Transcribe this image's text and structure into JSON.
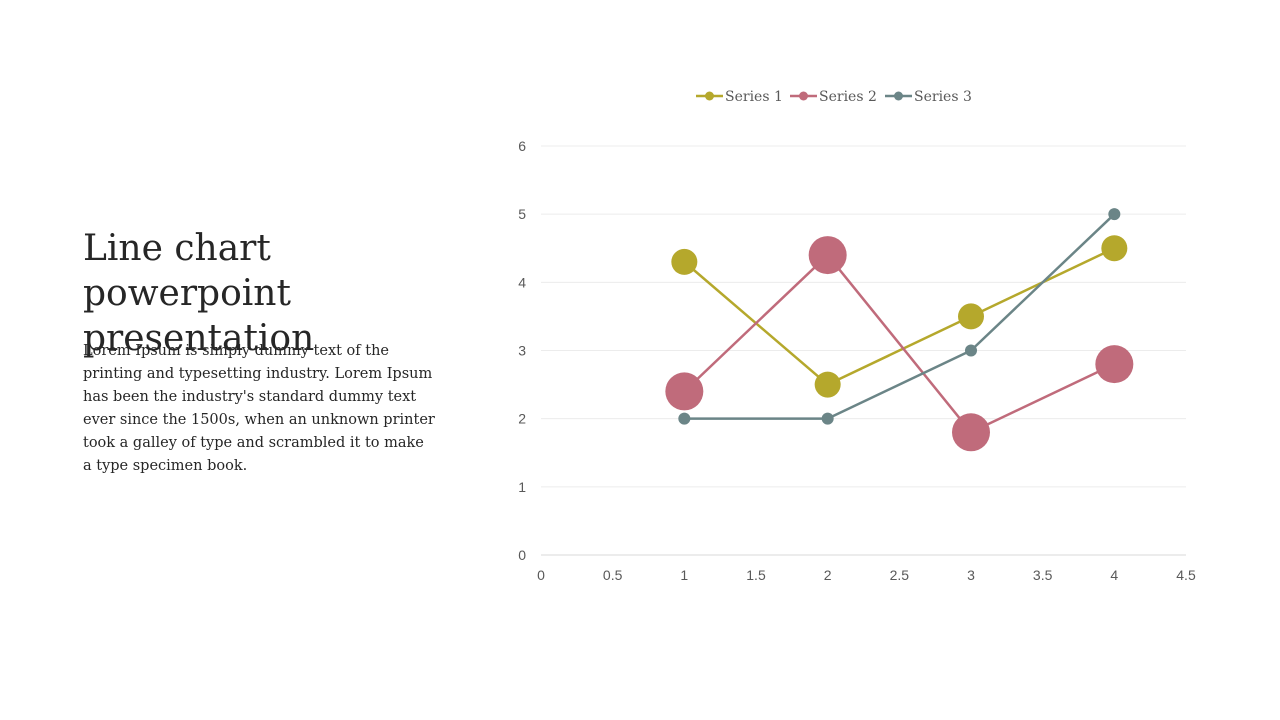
{
  "slide": {
    "title": "Line chart powerpoint presentation",
    "body": "Lorem Ipsum is simply dummy text of the printing and typesetting industry. Lorem Ipsum has been the industry's standard dummy text ever since the 1500s, when an unknown printer took a galley of type and scrambled it to make a type specimen book."
  },
  "chart_data": {
    "type": "line",
    "xlim": [
      0,
      4.5
    ],
    "ylim": [
      0,
      6
    ],
    "x_ticks": [
      "0",
      "0.5",
      "1",
      "1.5",
      "2",
      "2.5",
      "3",
      "3.5",
      "4",
      "4.5"
    ],
    "y_ticks": [
      "0",
      "1",
      "2",
      "3",
      "4",
      "5",
      "6"
    ],
    "grid": "horizontal",
    "legend_position": "top",
    "series": [
      {
        "name": "Series 1",
        "color": "#b5a82c",
        "x": [
          1,
          2,
          3,
          4
        ],
        "y": [
          4.3,
          2.5,
          3.5,
          4.5
        ],
        "marker": "medium"
      },
      {
        "name": "Series 2",
        "color": "#c06b7b",
        "x": [
          1,
          2,
          3,
          4
        ],
        "y": [
          2.4,
          4.4,
          1.8,
          2.8
        ],
        "marker": "large"
      },
      {
        "name": "Series 3",
        "color": "#6b8587",
        "x": [
          1,
          2,
          3,
          4
        ],
        "y": [
          2,
          2,
          3,
          5
        ],
        "marker": "small"
      }
    ]
  }
}
